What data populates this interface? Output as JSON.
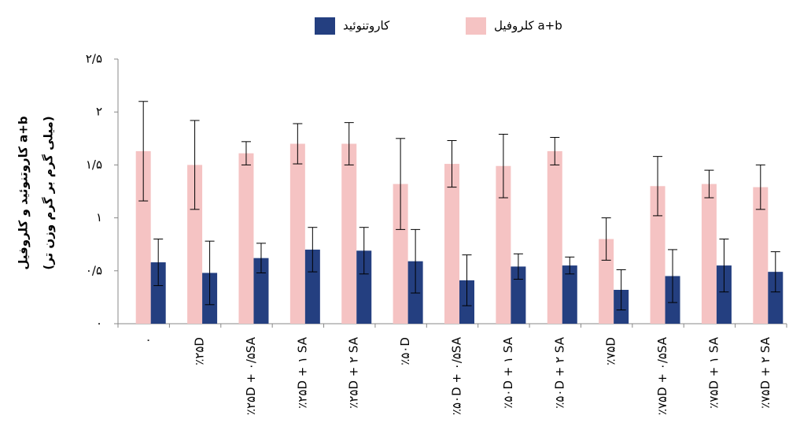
{
  "chart_data": {
    "type": "bar",
    "ylabel": [
      "کاروتنوئید و کلروفیل a+b",
      "(میلی گرم بر گرم وزن تر)"
    ],
    "categories": [
      "۰",
      "٪۲۵D",
      "٪۲۵D + ۰/۵SA",
      "٪۲۵D + ۱ SA",
      "٪۲۵D + ۲ SA",
      "٪۵۰D",
      "٪۵۰D + ۰/۵SA",
      "٪۵۰D + ۱ SA",
      "٪۵۰D + ۲ SA",
      "٪۷۵D",
      "٪۷۵D + ۰/۵SA",
      "٪۷۵D + ۱ SA",
      "٪۷۵D + ۲ SA"
    ],
    "series": [
      {
        "name": "کلروفیل a+b",
        "color": "#f5c3c3",
        "values": [
          1.63,
          1.5,
          1.61,
          1.7,
          1.7,
          1.32,
          1.51,
          1.49,
          1.63,
          0.8,
          1.3,
          1.32,
          1.29
        ],
        "errors": [
          0.47,
          0.42,
          0.11,
          0.19,
          0.2,
          0.43,
          0.22,
          0.3,
          0.13,
          0.2,
          0.28,
          0.13,
          0.21
        ]
      },
      {
        "name": "کاروتنوئید",
        "color": "#243f80",
        "values": [
          0.58,
          0.48,
          0.62,
          0.7,
          0.69,
          0.59,
          0.41,
          0.54,
          0.55,
          0.32,
          0.45,
          0.55,
          0.49
        ],
        "errors": [
          0.22,
          0.3,
          0.14,
          0.21,
          0.22,
          0.3,
          0.24,
          0.12,
          0.08,
          0.19,
          0.25,
          0.25,
          0.19
        ]
      }
    ],
    "ylim": [
      0,
      2.5
    ],
    "yticks": [
      {
        "value": 0,
        "label": "۰"
      },
      {
        "value": 0.5,
        "label": "۰/۵"
      },
      {
        "value": 1,
        "label": "۱"
      },
      {
        "value": 1.5,
        "label": "۱/۵"
      },
      {
        "value": 2,
        "label": "۲"
      },
      {
        "value": 2.5,
        "label": "۲/۵"
      }
    ],
    "grid": false
  }
}
